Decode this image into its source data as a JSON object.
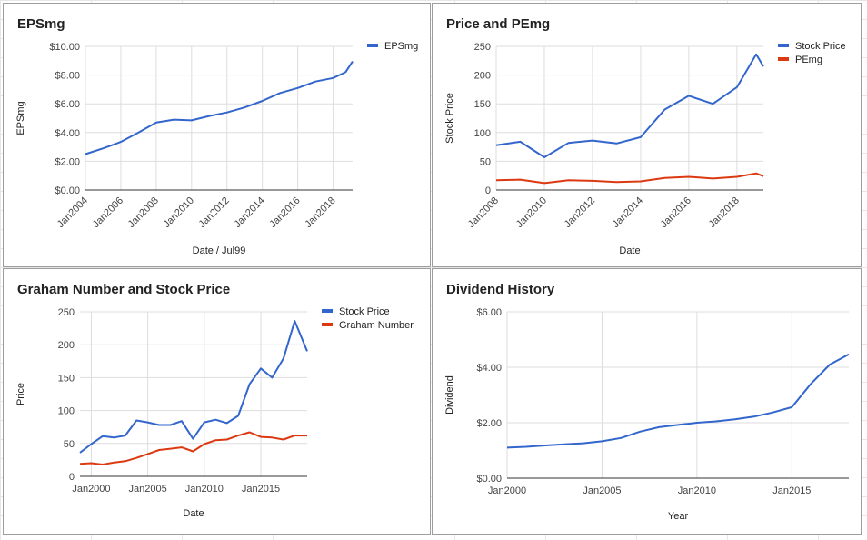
{
  "chart_data": [
    {
      "type": "line",
      "title": "EPSmg",
      "xlabel": "Date / Jul99",
      "ylabel": "EPSmg",
      "xlim": [
        2004,
        2019.1
      ],
      "ylim": [
        0,
        10
      ],
      "x_ticks": [
        2004,
        2006,
        2008,
        2010,
        2012,
        2014,
        2016,
        2018
      ],
      "x_tick_labels": [
        "Jan2004",
        "Jan2006",
        "Jan2008",
        "Jan2010",
        "Jan2012",
        "Jan2014",
        "Jan2016",
        "Jan2018"
      ],
      "y_ticks": [
        0,
        2,
        4,
        6,
        8,
        10
      ],
      "y_tick_labels": [
        "$0.00",
        "$2.00",
        "$4.00",
        "$6.00",
        "$8.00",
        "$10.00"
      ],
      "legend_position": "right",
      "grid": true,
      "series": [
        {
          "name": "EPSmg",
          "color": "#3366cc",
          "x": [
            2004,
            2005,
            2006,
            2007,
            2008,
            2009,
            2010,
            2011,
            2012,
            2013,
            2014,
            2015,
            2016,
            2017,
            2018,
            2018.7,
            2019.1
          ],
          "y": [
            2.5,
            2.9,
            3.35,
            4.0,
            4.7,
            4.9,
            4.85,
            5.15,
            5.4,
            5.75,
            6.2,
            6.75,
            7.1,
            7.55,
            7.8,
            8.2,
            8.95
          ]
        }
      ]
    },
    {
      "type": "line",
      "title": "Price and PEmg",
      "xlabel": "Date",
      "ylabel": "Stock Price",
      "xlim": [
        2008,
        2019.1
      ],
      "ylim": [
        0,
        250
      ],
      "x_ticks": [
        2008,
        2010,
        2012,
        2014,
        2016,
        2018
      ],
      "x_tick_labels": [
        "Jan2008",
        "Jan2010",
        "Jan2012",
        "Jan2014",
        "Jan2016",
        "Jan2018"
      ],
      "y_ticks": [
        0,
        50,
        100,
        150,
        200,
        250
      ],
      "y_tick_labels": [
        "0",
        "50",
        "100",
        "150",
        "200",
        "250"
      ],
      "legend_position": "right",
      "grid": true,
      "series": [
        {
          "name": "Stock Price",
          "color": "#3366cc",
          "x": [
            2008,
            2009,
            2010,
            2011,
            2012,
            2013,
            2014,
            2015,
            2016,
            2017,
            2018,
            2018.8,
            2019.1
          ],
          "y": [
            78,
            84,
            57,
            82,
            86,
            81,
            92,
            140,
            164,
            150,
            179,
            236,
            215
          ]
        },
        {
          "name": "PEmg",
          "color": "#dc3912",
          "x": [
            2008,
            2009,
            2010,
            2011,
            2012,
            2013,
            2014,
            2015,
            2016,
            2017,
            2018,
            2018.8,
            2019.1
          ],
          "y": [
            17,
            18,
            12,
            17,
            16,
            14,
            15,
            21,
            23,
            20,
            23,
            29,
            24
          ]
        }
      ]
    },
    {
      "type": "line",
      "title": "Graham Number and Stock Price",
      "xlabel": "Date",
      "ylabel": "Price",
      "xlim": [
        1999,
        2019.1
      ],
      "ylim": [
        0,
        250
      ],
      "x_ticks": [
        2000,
        2005,
        2010,
        2015
      ],
      "x_tick_labels": [
        "Jan2000",
        "Jan2005",
        "Jan2010",
        "Jan2015"
      ],
      "y_ticks": [
        0,
        50,
        100,
        150,
        200,
        250
      ],
      "y_tick_labels": [
        "0",
        "50",
        "100",
        "150",
        "200",
        "250"
      ],
      "legend_position": "right",
      "grid": true,
      "series": [
        {
          "name": "Stock Price",
          "color": "#3366cc",
          "x": [
            1999,
            2000,
            2001,
            2002,
            2003,
            2004,
            2005,
            2006,
            2007,
            2008,
            2009,
            2010,
            2011,
            2012,
            2013,
            2014,
            2015,
            2016,
            2017,
            2018,
            2019.1
          ],
          "y": [
            36,
            49,
            61,
            59,
            62,
            85,
            82,
            78,
            78,
            84,
            57,
            82,
            86,
            81,
            92,
            140,
            164,
            150,
            179,
            236,
            190
          ]
        },
        {
          "name": "Graham Number",
          "color": "#dc3912",
          "x": [
            1999,
            2000,
            2001,
            2002,
            2003,
            2004,
            2005,
            2006,
            2007,
            2008,
            2009,
            2010,
            2011,
            2012,
            2013,
            2014,
            2015,
            2016,
            2017,
            2018,
            2019.1
          ],
          "y": [
            19,
            20,
            18,
            21,
            23,
            28,
            34,
            40,
            42,
            44,
            38,
            49,
            55,
            56,
            62,
            67,
            60,
            59,
            56,
            62,
            62
          ]
        }
      ]
    },
    {
      "type": "line",
      "title": "Dividend History",
      "xlabel": "Year",
      "ylabel": "Dividend",
      "xlim": [
        2000,
        2018
      ],
      "ylim": [
        0,
        6
      ],
      "x_ticks": [
        2000,
        2005,
        2010,
        2015
      ],
      "x_tick_labels": [
        "Jan2000",
        "Jan2005",
        "Jan2010",
        "Jan2015"
      ],
      "y_ticks": [
        0,
        2,
        4,
        6
      ],
      "y_tick_labels": [
        "$0.00",
        "$2.00",
        "$4.00",
        "$6.00"
      ],
      "legend_position": "none",
      "grid": true,
      "series": [
        {
          "color": "#3366cc",
          "x": [
            2000,
            2001,
            2002,
            2003,
            2004,
            2005,
            2006,
            2007,
            2008,
            2009,
            2010,
            2011,
            2012,
            2013,
            2014,
            2015,
            2016,
            2017,
            2018
          ],
          "y": [
            1.1,
            1.13,
            1.18,
            1.22,
            1.26,
            1.33,
            1.45,
            1.68,
            1.84,
            1.92,
            2.0,
            2.05,
            2.12,
            2.22,
            2.37,
            2.56,
            3.4,
            4.1,
            4.47
          ]
        }
      ]
    }
  ]
}
